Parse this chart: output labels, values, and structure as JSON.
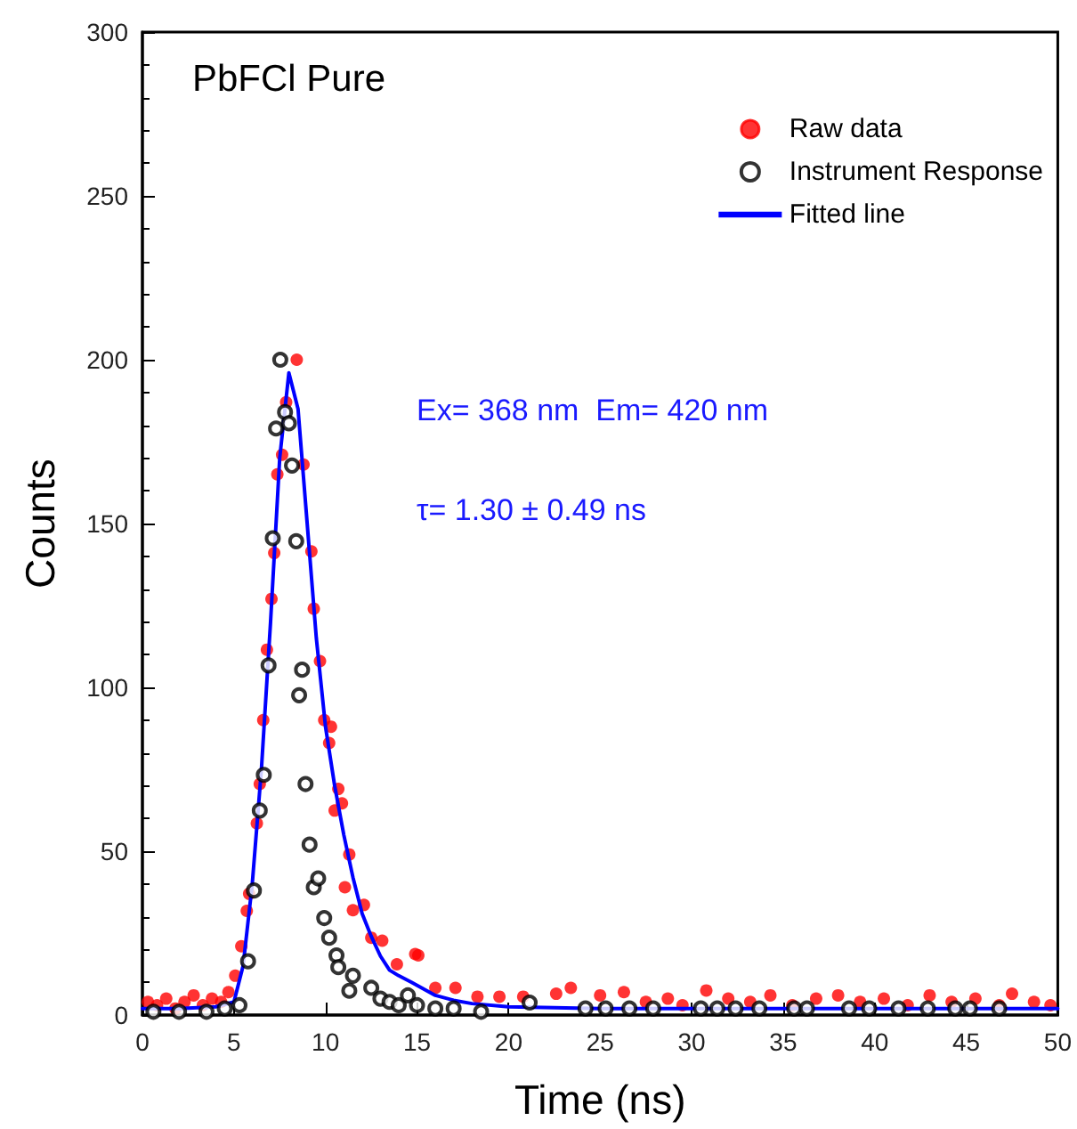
{
  "chart_data": {
    "type": "scatter",
    "xlabel": "Time (ns)",
    "ylabel": "Counts",
    "annotations": [
      "PbFCl Pure",
      "Ex= 368 nm  Em= 420 nm",
      "τ= 1.30 ± 0.49 ns"
    ],
    "xlim": [
      0,
      50
    ],
    "xticks": [
      0,
      5,
      10,
      15,
      20,
      25,
      30,
      35,
      40,
      45,
      50
    ],
    "ylim": [
      0,
      300
    ],
    "yticks": [
      0,
      50,
      100,
      150,
      200,
      250,
      300
    ],
    "grid": false,
    "legend": "top right",
    "marker": "circle",
    "series": [
      {
        "name": "Raw data",
        "color": "#ff0000",
        "x": [
          0.3,
          0.8,
          1.3,
          1.8,
          2.3,
          2.8,
          3.3,
          3.8,
          4.3,
          4.7,
          5.07,
          5.4,
          5.7,
          5.83,
          6.25,
          6.41,
          6.6,
          6.8,
          7.05,
          7.2,
          7.37,
          7.63,
          7.85,
          8.43,
          8.8,
          9.23,
          9.36,
          9.7,
          9.93,
          10.2,
          10.3,
          10.5,
          10.7,
          10.9,
          11.06,
          11.3,
          11.5,
          12.1,
          12.5,
          13.1,
          13.9,
          14.9,
          15.07,
          16,
          17.1,
          18.3,
          19.5,
          20.8,
          22.6,
          23.4,
          25,
          26.3,
          27.5,
          28.7,
          29.5,
          30.8,
          32,
          33.2,
          34.3,
          35.5,
          36.8,
          38,
          39.2,
          40.5,
          41.8,
          43,
          44.2,
          45.5,
          46.8,
          47.5,
          48.7,
          49.6
        ],
        "values": [
          4,
          3,
          5,
          2,
          4,
          6,
          3,
          5,
          4,
          7,
          12,
          21,
          31.8,
          37,
          58.5,
          70.5,
          90,
          111.5,
          127,
          141,
          165,
          171,
          187,
          200,
          168,
          141.5,
          124,
          108,
          90,
          83,
          88,
          62.4,
          69,
          64.6,
          39,
          49,
          32,
          33.6,
          23.6,
          22.7,
          15.5,
          18.6,
          18.2,
          8.3,
          8.3,
          5.6,
          5.6,
          5.6,
          6.5,
          8.3,
          6,
          7,
          4,
          5,
          3,
          7.5,
          5,
          4,
          6,
          3,
          5,
          6,
          4,
          5,
          3,
          6,
          4,
          5,
          3,
          6.5,
          4,
          3
        ]
      },
      {
        "name": "Instrument Response",
        "color": "#000000",
        "x": [
          0.6,
          2,
          3.5,
          4.5,
          5.3,
          5.77,
          6.09,
          6.41,
          6.63,
          6.89,
          7.12,
          7.3,
          7.53,
          7.79,
          8,
          8.17,
          8.4,
          8.56,
          8.72,
          8.91,
          9.13,
          9.36,
          9.6,
          9.93,
          10.2,
          10.6,
          10.7,
          11.3,
          11.5,
          12.5,
          13,
          13.5,
          14,
          14.5,
          15,
          16,
          17,
          18.5,
          21.15,
          24.2,
          25.3,
          26.6,
          27.9,
          30.5,
          31.4,
          32.4,
          33.7,
          35.6,
          36.3,
          38.6,
          39.7,
          41.3,
          42.9,
          44.4,
          45.2,
          46.8
        ],
        "values": [
          1,
          1,
          1,
          2,
          3,
          16.4,
          38,
          62.4,
          73.3,
          106.7,
          145.5,
          179,
          200,
          184,
          180.6,
          167.7,
          144.6,
          97.6,
          105.4,
          70.5,
          52,
          39,
          41.7,
          29.6,
          23.6,
          18.2,
          14.6,
          7.4,
          12,
          8.3,
          5,
          4,
          3,
          6,
          3,
          2,
          2,
          1,
          3.8,
          2,
          2,
          2,
          2,
          2,
          2,
          2,
          2,
          2,
          2,
          2,
          2,
          2,
          2,
          2,
          2,
          2
        ]
      },
      {
        "name": "Fitted line",
        "type": "line",
        "marker": "none",
        "line_style": "solid",
        "color": "#0000ff",
        "x": [
          0,
          2,
          4,
          5,
          5.5,
          6,
          6.5,
          7,
          7.5,
          8,
          8.5,
          9,
          9.5,
          10,
          10.5,
          11,
          11.5,
          12,
          12.5,
          13,
          13.5,
          14,
          14.7,
          16,
          17,
          18,
          20,
          25,
          30,
          40,
          50
        ],
        "values": [
          2,
          2,
          2.5,
          4,
          15,
          40,
          75,
          120,
          170,
          196,
          185,
          150,
          115,
          88,
          70,
          55,
          42,
          31,
          24,
          18,
          13.7,
          12,
          10,
          6,
          4.5,
          3.5,
          2.5,
          2,
          2,
          2,
          2
        ]
      }
    ]
  }
}
